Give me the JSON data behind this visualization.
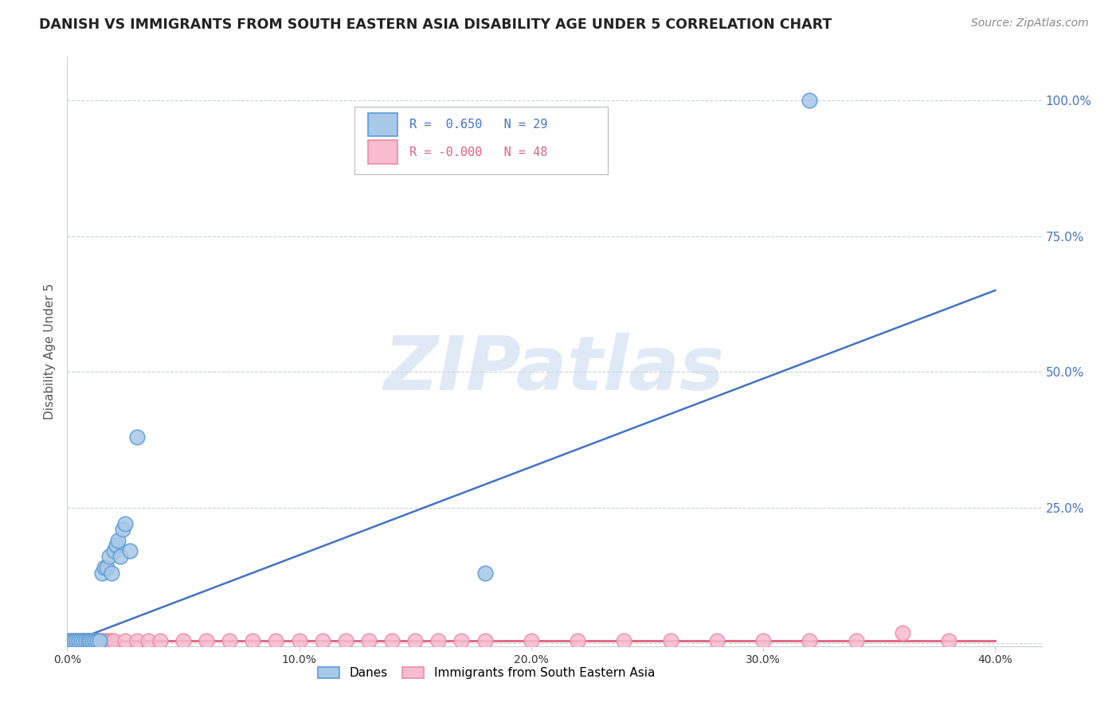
{
  "title": "DANISH VS IMMIGRANTS FROM SOUTH EASTERN ASIA DISABILITY AGE UNDER 5 CORRELATION CHART",
  "source": "Source: ZipAtlas.com",
  "ylabel": "Disability Age Under 5",
  "xlim": [
    0.0,
    0.42
  ],
  "ylim": [
    -0.005,
    1.08
  ],
  "ytick_vals": [
    0.0,
    0.25,
    0.5,
    0.75,
    1.0
  ],
  "ytick_labels": [
    "",
    "25.0%",
    "50.0%",
    "75.0%",
    "100.0%"
  ],
  "xtick_vals": [
    0.0,
    0.1,
    0.2,
    0.3,
    0.4
  ],
  "xtick_labels": [
    "0.0%",
    "10.0%",
    "20.0%",
    "30.0%",
    "40.0%"
  ],
  "background_color": "#ffffff",
  "blue_fill": "#a8c8e8",
  "blue_edge": "#5b9bd5",
  "pink_fill": "#f8bbd0",
  "pink_edge": "#e88fa8",
  "blue_line_color": "#4472c4",
  "pink_line_color": "#e06080",
  "tick_color": "#4472c4",
  "legend_R_blue": "0.650",
  "legend_N_blue": "29",
  "legend_R_pink": "-0.000",
  "legend_N_pink": "48",
  "watermark_text": "ZIPatlas",
  "danes_x": [
    0.001,
    0.002,
    0.003,
    0.004,
    0.005,
    0.006,
    0.007,
    0.008,
    0.009,
    0.01,
    0.011,
    0.012,
    0.013,
    0.014,
    0.015,
    0.016,
    0.017,
    0.018,
    0.019,
    0.02,
    0.021,
    0.022,
    0.023,
    0.024,
    0.025,
    0.027,
    0.03,
    0.18,
    0.32
  ],
  "danes_y": [
    0.005,
    0.005,
    0.005,
    0.005,
    0.005,
    0.005,
    0.005,
    0.005,
    0.005,
    0.005,
    0.005,
    0.005,
    0.005,
    0.005,
    0.13,
    0.14,
    0.14,
    0.16,
    0.13,
    0.17,
    0.18,
    0.19,
    0.16,
    0.21,
    0.22,
    0.17,
    0.38,
    0.13,
    1.0
  ],
  "immig_x": [
    0.001,
    0.002,
    0.003,
    0.004,
    0.005,
    0.006,
    0.007,
    0.008,
    0.009,
    0.01,
    0.011,
    0.012,
    0.013,
    0.014,
    0.015,
    0.016,
    0.017,
    0.018,
    0.019,
    0.02,
    0.025,
    0.03,
    0.035,
    0.04,
    0.05,
    0.06,
    0.07,
    0.08,
    0.09,
    0.1,
    0.11,
    0.12,
    0.13,
    0.14,
    0.15,
    0.16,
    0.17,
    0.18,
    0.2,
    0.22,
    0.24,
    0.26,
    0.28,
    0.3,
    0.32,
    0.34,
    0.36,
    0.38
  ],
  "immig_y": [
    0.005,
    0.005,
    0.005,
    0.005,
    0.005,
    0.005,
    0.005,
    0.005,
    0.005,
    0.005,
    0.005,
    0.005,
    0.005,
    0.005,
    0.005,
    0.005,
    0.005,
    0.005,
    0.005,
    0.005,
    0.005,
    0.005,
    0.005,
    0.005,
    0.005,
    0.005,
    0.005,
    0.005,
    0.005,
    0.005,
    0.005,
    0.005,
    0.005,
    0.005,
    0.005,
    0.005,
    0.005,
    0.005,
    0.005,
    0.005,
    0.005,
    0.005,
    0.005,
    0.005,
    0.005,
    0.005,
    0.02,
    0.005
  ],
  "blue_line_x": [
    0.0,
    0.4
  ],
  "blue_line_y": [
    0.0,
    0.65
  ],
  "pink_line_x": [
    0.0,
    0.4
  ],
  "pink_line_y": [
    0.005,
    0.005
  ]
}
